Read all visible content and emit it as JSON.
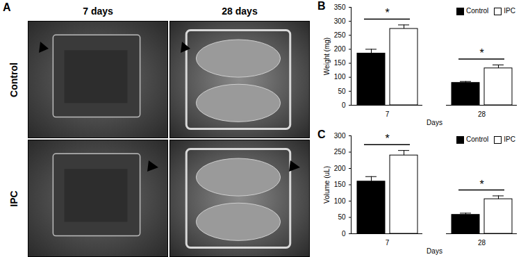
{
  "panel_a": {
    "label": "A",
    "columns": [
      "7 days",
      "28 days"
    ],
    "rows": [
      "Control",
      "IPC"
    ]
  },
  "chart_data": [
    {
      "type": "bar",
      "title": "B",
      "x_label": "Days",
      "y_label": "Weight (mg)",
      "categories": [
        "7",
        "28"
      ],
      "series": [
        {
          "name": "Control",
          "color": "#000000",
          "values": [
            185,
            80
          ],
          "errors": [
            15,
            5
          ]
        },
        {
          "name": "IPC",
          "color": "#ffffff",
          "values": [
            273,
            132
          ],
          "errors": [
            14,
            12
          ]
        }
      ],
      "ylim": [
        0,
        350
      ],
      "yticks": [
        0,
        50,
        100,
        150,
        200,
        250,
        300,
        350
      ],
      "legend": "top-right",
      "annotations": [
        {
          "category": "7",
          "text": "*"
        },
        {
          "category": "28",
          "text": "*"
        }
      ]
    },
    {
      "type": "bar",
      "title": "C",
      "x_label": "Days",
      "y_label": "Volume (uL)",
      "categories": [
        "7",
        "28"
      ],
      "series": [
        {
          "name": "Control",
          "color": "#000000",
          "values": [
            160,
            58
          ],
          "errors": [
            15,
            5
          ]
        },
        {
          "name": "IPC",
          "color": "#ffffff",
          "values": [
            240,
            106
          ],
          "errors": [
            15,
            10
          ]
        }
      ],
      "ylim": [
        0,
        300
      ],
      "yticks": [
        0,
        50,
        100,
        150,
        200,
        250,
        300
      ],
      "legend": "top-right",
      "annotations": [
        {
          "category": "7",
          "text": "*"
        },
        {
          "category": "28",
          "text": "*"
        }
      ]
    }
  ]
}
